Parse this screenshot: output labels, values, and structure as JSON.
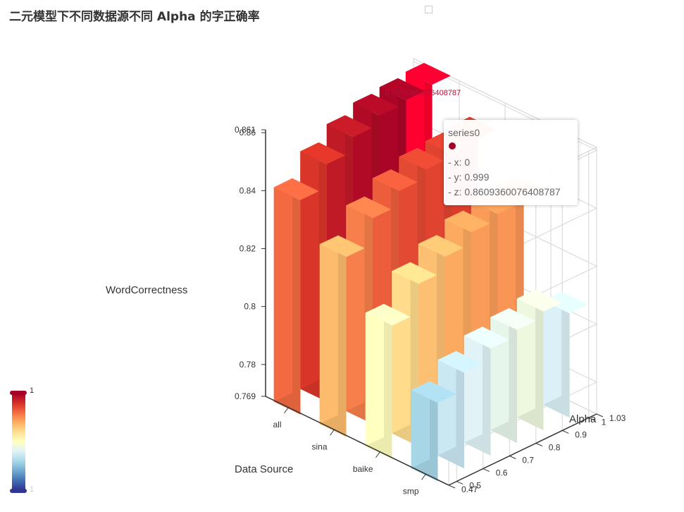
{
  "title": "二元模型下不同数据源不同 Alpha 的字正确率",
  "colors": {
    "title": "#333333",
    "axis": "#333333",
    "tooltip_dot": "#a50026",
    "highlight": "#ff0030",
    "palette": [
      "#313695",
      "#4575b4",
      "#74add1",
      "#abd9e9",
      "#e0f3f8",
      "#ffffbf",
      "#fee090",
      "#fdae61",
      "#f46d43",
      "#d73027",
      "#a50026"
    ]
  },
  "tooltip": {
    "series": "series0",
    "x": "- x: 0",
    "y": "- y: 0.999",
    "z": "- z: 0.8609360076408787"
  },
  "highlight_label": "0.8609360076408787",
  "visual_map": {
    "max_label": "1",
    "min_label": "1"
  },
  "chart_data": {
    "type": "bar3d",
    "title": "二元模型下不同数据源不同 Alpha 的字正确率",
    "x_axis": {
      "name": "Data Source",
      "categories": [
        "all",
        "sina",
        "baike",
        "smp"
      ]
    },
    "y_axis": {
      "name": "Alpha",
      "min": 0.47,
      "max": 1.03,
      "ticks": [
        "0.47",
        "0.5",
        "0.6",
        "0.7",
        "0.8",
        "0.9",
        "1",
        "1.03"
      ]
    },
    "z_axis": {
      "name": "WordCorrectness",
      "min": 0.769,
      "max": 0.861,
      "ticks": [
        "0.769",
        "0.78",
        "0.8",
        "0.82",
        "0.84",
        "0.86",
        "0.861"
      ]
    },
    "alphas": [
      0.5,
      0.6,
      0.7,
      0.8,
      0.9,
      0.999
    ],
    "series": [
      {
        "name": "series0",
        "category": "all",
        "values": [
          0.843,
          0.851,
          0.856,
          0.859,
          0.86,
          0.8609360076408787
        ]
      },
      {
        "category": "sina",
        "values": [
          0.831,
          0.84,
          0.845,
          0.848,
          0.849,
          0.85
        ]
      },
      {
        "category": "baike",
        "values": [
          0.815,
          0.825,
          0.83,
          0.834,
          0.836,
          0.837
        ]
      },
      {
        "category": "smp",
        "values": [
          0.796,
          0.802,
          0.806,
          0.808,
          0.81,
          0.805
        ]
      }
    ],
    "grid": true,
    "visual_map": {
      "position": "bottom-left",
      "range": [
        0.769,
        0.861
      ]
    }
  }
}
